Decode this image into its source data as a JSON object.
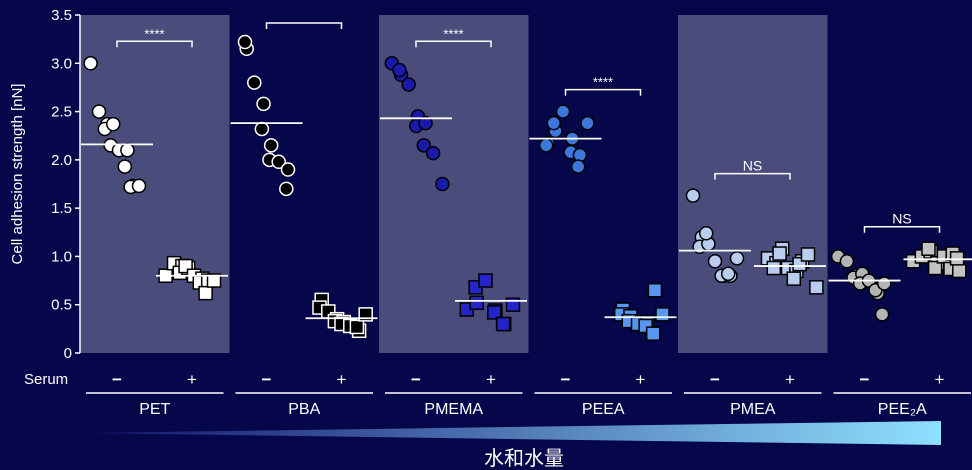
{
  "colors": {
    "background": "#06064a",
    "panel_shade": "#4a4c7c",
    "axis": "#ffffff",
    "gradient_start": "#12126a",
    "gradient_end": "#8fe0ff"
  },
  "chart_data": {
    "type": "scatter",
    "ylabel": "Cell adhesion strength [nN]",
    "ylim": [
      0,
      3.5
    ],
    "yticks": [
      "0",
      "0.5",
      "1.0",
      "1.5",
      "2.0",
      "2.5",
      "3.0",
      "3.5"
    ],
    "serum_label": "Serum",
    "serum_minus": "−",
    "serum_plus": "+",
    "gradient_label": "水和水量",
    "shaded_groups": [
      "PET",
      "PMEMA",
      "PMEA"
    ],
    "groups": [
      {
        "name": "PET",
        "sig": "****",
        "minus": {
          "fill": "#ffffff",
          "stroke": "#000000",
          "marker": "circle",
          "median": 2.16,
          "values": [
            3.0,
            2.5,
            2.37,
            2.32,
            2.37,
            2.15,
            2.1,
            2.1,
            1.93,
            1.73,
            1.72,
            1.73
          ]
        },
        "plus": {
          "fill": "#ffffff",
          "stroke": "#000000",
          "marker": "square",
          "median": 0.8,
          "values": [
            0.8,
            0.93,
            0.9,
            0.83,
            0.88,
            0.9,
            0.8,
            0.77,
            0.73,
            0.75,
            0.62,
            0.75
          ]
        }
      },
      {
        "name": "PBA",
        "sig": "",
        "minus": {
          "fill": "#000000",
          "stroke": "#ffffff",
          "marker": "circle",
          "median": 2.38,
          "values": [
            3.15,
            3.22,
            2.8,
            2.58,
            2.32,
            2.15,
            2.0,
            1.98,
            1.9,
            1.7
          ]
        },
        "plus": {
          "fill": "#000000",
          "stroke": "#ffffff",
          "marker": "square",
          "median": 0.36,
          "values": [
            0.55,
            0.47,
            0.43,
            0.35,
            0.33,
            0.32,
            0.3,
            0.28,
            0.23,
            0.27,
            0.4
          ]
        }
      },
      {
        "name": "PMEMA",
        "sig": "****",
        "minus": {
          "fill": "#1a1aaa",
          "stroke": "#000000",
          "marker": "circle",
          "median": 2.43,
          "values": [
            3.0,
            2.88,
            2.93,
            2.78,
            2.45,
            2.35,
            2.38,
            2.15,
            2.07,
            1.75
          ]
        },
        "plus": {
          "fill": "#2424c8",
          "stroke": "#000000",
          "marker": "square",
          "median": 0.54,
          "values": [
            0.45,
            0.52,
            0.68,
            0.75,
            0.44,
            0.42,
            0.3,
            0.3,
            0.5
          ]
        }
      },
      {
        "name": "PEEA",
        "sig": "****",
        "minus": {
          "fill": "#3c78dc",
          "stroke": "#000000",
          "marker": "circle",
          "median": 2.22,
          "values": [
            2.17,
            2.15,
            2.3,
            2.38,
            2.5,
            2.22,
            2.08,
            2.05,
            1.93,
            2.38
          ]
        },
        "plus": {
          "fill": "#5a96f0",
          "stroke": "#000000",
          "marker": "square",
          "median": 0.37,
          "values": [
            0.45,
            0.4,
            0.38,
            0.33,
            0.3,
            0.32,
            0.28,
            0.65,
            0.2,
            0.4
          ]
        }
      },
      {
        "name": "PMEA",
        "sig": "NS",
        "minus": {
          "fill": "#b9cdf0",
          "stroke": "#000000",
          "marker": "circle",
          "median": 1.06,
          "values": [
            1.63,
            1.2,
            1.1,
            1.13,
            1.24,
            0.95,
            0.8,
            0.8,
            0.8,
            0.82,
            0.98
          ]
        },
        "plus": {
          "fill": "#b9cdf0",
          "stroke": "#000000",
          "marker": "square",
          "median": 0.9,
          "values": [
            0.98,
            0.93,
            0.88,
            1.08,
            1.03,
            0.88,
            0.85,
            0.77,
            0.95,
            0.92,
            1.02,
            0.68
          ]
        }
      },
      {
        "name": "PEE₂A",
        "sig": "NS",
        "minus": {
          "fill": "#b4b4b4",
          "stroke": "#000000",
          "marker": "circle",
          "median": 0.75,
          "values": [
            1.0,
            0.95,
            0.8,
            0.78,
            0.82,
            0.72,
            0.75,
            0.62,
            0.65,
            0.72,
            0.4
          ]
        },
        "plus": {
          "fill": "#c3c3c3",
          "stroke": "#000000",
          "marker": "square",
          "median": 0.97,
          "values": [
            0.95,
            1.0,
            1.05,
            1.08,
            0.93,
            0.88,
            1.0,
            1.03,
            0.87,
            0.85,
            0.98
          ]
        }
      }
    ]
  }
}
